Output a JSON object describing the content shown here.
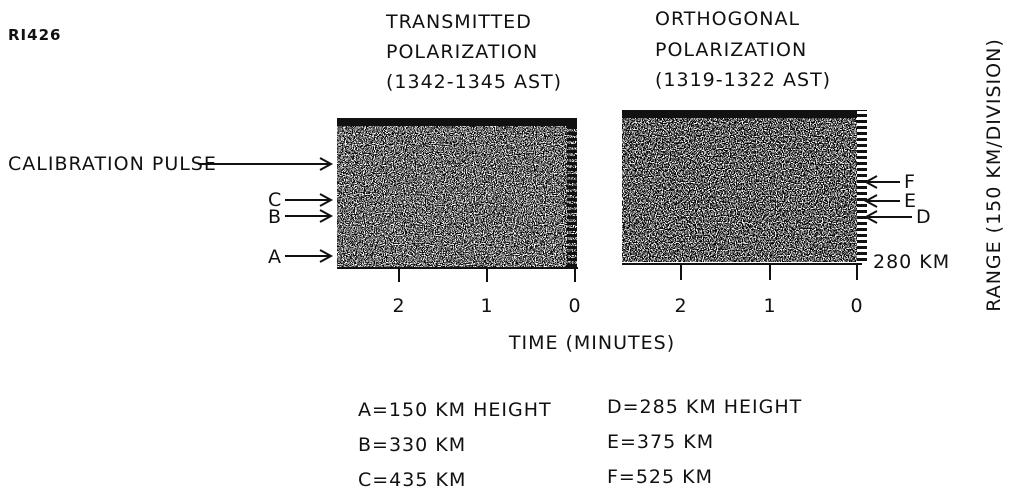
{
  "header": {
    "code": "RI426"
  },
  "panels": [
    {
      "title": [
        "TRANSMITTED",
        "POLARIZATION",
        "(1342-1345 AST)"
      ],
      "time_ticks": [
        "2",
        "1",
        "0"
      ],
      "markers": [
        "CALIBRATION PULSE",
        "C",
        "B",
        "A"
      ]
    },
    {
      "title": [
        "ORTHOGONAL",
        "POLARIZATION",
        "(1319-1322 AST)"
      ],
      "time_ticks": [
        "2",
        "1",
        "0"
      ],
      "markers": [
        "F",
        "E",
        "D"
      ],
      "range_label": "280 KM"
    }
  ],
  "x_axis_label": "TIME (MINUTES)",
  "y_axis_label": "RANGE (150 KM/DIVISION)",
  "key": {
    "left": [
      "A=150 KM HEIGHT",
      "B=330 KM",
      "C=435 KM"
    ],
    "right": [
      "D=285 KM HEIGHT",
      "E=375 KM",
      "F=525 KM"
    ]
  }
}
